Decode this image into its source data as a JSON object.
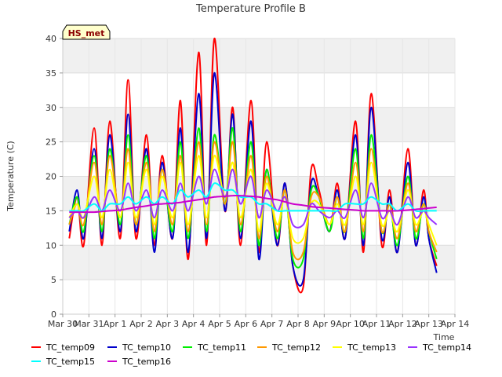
{
  "chart_data": {
    "type": "line",
    "title": "Temperature Profile B",
    "xlabel": "Time",
    "ylabel": "Temperature (C)",
    "badge": "HS_met",
    "ylim": [
      0,
      40
    ],
    "yticks": [
      0,
      5,
      10,
      15,
      20,
      25,
      30,
      35,
      40
    ],
    "xlim": [
      0,
      15
    ],
    "xticks": [
      {
        "value": 0,
        "label": "Mar 30"
      },
      {
        "value": 1,
        "label": "Mar 31"
      },
      {
        "value": 2,
        "label": "Apr 1"
      },
      {
        "value": 3,
        "label": "Apr 2"
      },
      {
        "value": 4,
        "label": "Apr 3"
      },
      {
        "value": 5,
        "label": "Apr 4"
      },
      {
        "value": 6,
        "label": "Apr 5"
      },
      {
        "value": 7,
        "label": "Apr 6"
      },
      {
        "value": 8,
        "label": "Apr 7"
      },
      {
        "value": 9,
        "label": "Apr 8"
      },
      {
        "value": 10,
        "label": "Apr 9"
      },
      {
        "value": 11,
        "label": "Apr 10"
      },
      {
        "value": 12,
        "label": "Apr 11"
      },
      {
        "value": 13,
        "label": "Apr 12"
      },
      {
        "value": 14,
        "label": "Apr 13"
      },
      {
        "value": 15,
        "label": "Apr 14"
      }
    ],
    "grid": true,
    "legend_position": "bottom",
    "x_days": [
      0.25,
      0.55,
      0.8,
      1.2,
      1.5,
      1.8,
      2.2,
      2.5,
      2.8,
      3.2,
      3.5,
      3.8,
      4.2,
      4.5,
      4.8,
      5.2,
      5.5,
      5.8,
      6.2,
      6.5,
      6.8,
      7.2,
      7.5,
      7.8,
      8.2,
      8.5,
      8.8,
      9.2,
      9.5,
      9.8,
      10.2,
      10.5,
      10.8,
      11.2,
      11.5,
      11.8,
      12.2,
      12.5,
      12.8,
      13.2,
      13.5,
      13.8,
      14.0,
      14.3
    ],
    "series": [
      {
        "name": "TC_temp09",
        "color": "#ff0000",
        "values": [
          11,
          17,
          10,
          27,
          10,
          28,
          11,
          34,
          11,
          26,
          10,
          23,
          11,
          31,
          8,
          38,
          10,
          40,
          15,
          30,
          10,
          31,
          9,
          25,
          10,
          19,
          7,
          4,
          21,
          18,
          12,
          19,
          11,
          28,
          9,
          32,
          10,
          18,
          9,
          24,
          10,
          18,
          11,
          7
        ]
      },
      {
        "name": "TC_temp10",
        "color": "#0000cc",
        "values": [
          12,
          18,
          11,
          24,
          11,
          26,
          12,
          29,
          12,
          24,
          9,
          22,
          11,
          27,
          9,
          32,
          11,
          35,
          15,
          29,
          11,
          28,
          8,
          21,
          10,
          19,
          7,
          5,
          19,
          17,
          12,
          18,
          11,
          26,
          10,
          30,
          11,
          17,
          9,
          22,
          10,
          17,
          11,
          6
        ]
      },
      {
        "name": "TC_temp11",
        "color": "#00ee00",
        "values": [
          13,
          17,
          12,
          23,
          12,
          24,
          13,
          26,
          13,
          23,
          11,
          21,
          12,
          25,
          11,
          27,
          12,
          26,
          16,
          27,
          12,
          25,
          10,
          21,
          11,
          18,
          8,
          8,
          18,
          17,
          12,
          17,
          12,
          24,
          11,
          26,
          12,
          16,
          10,
          20,
          11,
          16,
          12,
          8
        ]
      },
      {
        "name": "TC_temp12",
        "color": "#ff9900",
        "values": [
          13,
          16,
          13,
          22,
          13,
          23,
          14,
          24,
          13,
          22,
          12,
          21,
          13,
          23,
          12,
          25,
          13,
          25,
          16,
          25,
          13,
          23,
          11,
          20,
          12,
          18,
          9,
          9,
          17,
          17,
          13,
          17,
          12,
          22,
          12,
          24,
          12,
          16,
          11,
          19,
          12,
          16,
          12,
          9
        ]
      },
      {
        "name": "TC_temp13",
        "color": "#ffff00",
        "values": [
          14,
          16,
          14,
          20,
          14,
          21,
          14,
          22,
          14,
          21,
          13,
          20,
          14,
          22,
          13,
          23,
          14,
          23,
          17,
          22,
          14,
          21,
          12,
          19,
          13,
          17,
          11,
          11,
          16,
          16,
          13,
          16,
          13,
          20,
          13,
          22,
          13,
          15,
          12,
          18,
          13,
          15,
          13,
          10
        ]
      },
      {
        "name": "TC_temp14",
        "color": "#9933ff",
        "values": [
          14,
          15,
          14,
          17,
          15,
          18,
          15,
          19,
          15,
          18,
          14,
          18,
          15,
          19,
          15,
          20,
          16,
          21,
          17,
          21,
          16,
          20,
          14,
          18,
          15,
          17,
          13,
          13,
          16,
          15,
          14,
          15,
          14,
          18,
          14,
          19,
          14,
          15,
          13,
          17,
          14,
          15,
          14,
          13
        ]
      },
      {
        "name": "TC_temp15",
        "color": "#00ffff",
        "values": [
          15,
          15,
          15,
          16,
          15,
          16,
          16,
          17,
          16,
          17,
          16,
          17,
          16,
          18,
          17,
          18,
          17,
          19,
          18,
          18,
          17,
          17,
          16,
          16,
          15,
          15,
          15,
          15,
          15,
          15,
          15,
          15,
          16,
          16,
          16,
          17,
          16,
          16,
          15,
          16,
          15,
          15,
          15,
          15
        ]
      },
      {
        "name": "TC_temp16",
        "color": "#cc00cc",
        "values": [
          14.8,
          14.8,
          14.8,
          14.8,
          14.9,
          15.0,
          15.1,
          15.3,
          15.5,
          15.7,
          15.9,
          16.0,
          16.1,
          16.2,
          16.4,
          16.6,
          16.8,
          17.0,
          17.1,
          17.2,
          17.2,
          17.1,
          17.0,
          16.8,
          16.6,
          16.3,
          16.0,
          15.8,
          15.6,
          15.5,
          15.4,
          15.3,
          15.2,
          15.1,
          15.0,
          15.0,
          15.0,
          15.0,
          15.0,
          15.1,
          15.2,
          15.3,
          15.4,
          15.5
        ]
      }
    ]
  }
}
